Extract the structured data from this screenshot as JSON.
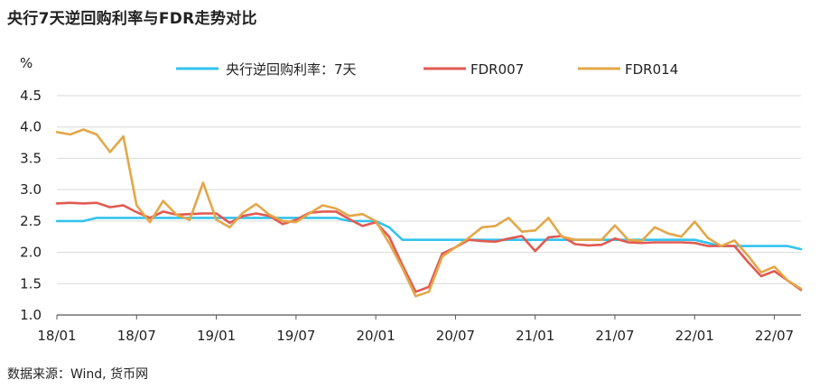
{
  "header": {
    "title": "央行7天逆回购利率与FDR走势对比"
  },
  "footer": {
    "source": "数据来源：Wind, 货币网"
  },
  "chart_data": {
    "type": "line",
    "y_unit": "%",
    "ylim": [
      1.0,
      4.5
    ],
    "y_ticks": [
      "1.0",
      "1.5",
      "2.0",
      "2.5",
      "3.0",
      "3.5",
      "4.0",
      "4.5"
    ],
    "x_range": [
      "2018-01",
      "2022-09"
    ],
    "x_ticks": [
      "18/01",
      "18/07",
      "19/01",
      "19/07",
      "20/01",
      "20/07",
      "21/01",
      "21/07",
      "22/01",
      "22/07"
    ],
    "grid": "horizontal",
    "legend_position": "top",
    "series": [
      {
        "name": "央行逆回购利率：7天",
        "color": "#33c3ee",
        "x": [
          "2018-01",
          "2018-02",
          "2018-03",
          "2018-04",
          "2018-05",
          "2018-06",
          "2018-07",
          "2018-08",
          "2018-09",
          "2018-10",
          "2018-11",
          "2018-12",
          "2019-01",
          "2019-02",
          "2019-03",
          "2019-04",
          "2019-05",
          "2019-06",
          "2019-07",
          "2019-08",
          "2019-09",
          "2019-10",
          "2019-11",
          "2019-12",
          "2020-01",
          "2020-02",
          "2020-03",
          "2020-04",
          "2020-05",
          "2020-06",
          "2020-07",
          "2020-08",
          "2020-09",
          "2020-10",
          "2020-11",
          "2020-12",
          "2021-01",
          "2021-02",
          "2021-03",
          "2021-04",
          "2021-05",
          "2021-06",
          "2021-07",
          "2021-08",
          "2021-09",
          "2021-10",
          "2021-11",
          "2021-12",
          "2022-01",
          "2022-02",
          "2022-03",
          "2022-04",
          "2022-05",
          "2022-06",
          "2022-07",
          "2022-08",
          "2022-09"
        ],
        "values": [
          2.5,
          2.5,
          2.5,
          2.55,
          2.55,
          2.55,
          2.55,
          2.55,
          2.55,
          2.55,
          2.55,
          2.55,
          2.55,
          2.55,
          2.55,
          2.55,
          2.55,
          2.55,
          2.55,
          2.55,
          2.55,
          2.55,
          2.5,
          2.5,
          2.5,
          2.4,
          2.2,
          2.2,
          2.2,
          2.2,
          2.2,
          2.2,
          2.2,
          2.2,
          2.2,
          2.2,
          2.2,
          2.2,
          2.2,
          2.2,
          2.2,
          2.2,
          2.2,
          2.2,
          2.2,
          2.2,
          2.2,
          2.2,
          2.2,
          2.15,
          2.1,
          2.1,
          2.1,
          2.1,
          2.1,
          2.1,
          2.05
        ]
      },
      {
        "name": "FDR007",
        "color": "#e05a52",
        "x": [
          "2018-01",
          "2018-02",
          "2018-03",
          "2018-04",
          "2018-05",
          "2018-06",
          "2018-07",
          "2018-08",
          "2018-09",
          "2018-10",
          "2018-11",
          "2018-12",
          "2019-01",
          "2019-02",
          "2019-03",
          "2019-04",
          "2019-05",
          "2019-06",
          "2019-07",
          "2019-08",
          "2019-09",
          "2019-10",
          "2019-11",
          "2019-12",
          "2020-01",
          "2020-02",
          "2020-03",
          "2020-04",
          "2020-05",
          "2020-06",
          "2020-07",
          "2020-08",
          "2020-09",
          "2020-10",
          "2020-11",
          "2020-12",
          "2021-01",
          "2021-02",
          "2021-03",
          "2021-04",
          "2021-05",
          "2021-06",
          "2021-07",
          "2021-08",
          "2021-09",
          "2021-10",
          "2021-11",
          "2021-12",
          "2022-01",
          "2022-02",
          "2022-03",
          "2022-04",
          "2022-05",
          "2022-06",
          "2022-07",
          "2022-08",
          "2022-09"
        ],
        "values": [
          2.78,
          2.79,
          2.78,
          2.79,
          2.72,
          2.75,
          2.64,
          2.55,
          2.65,
          2.6,
          2.61,
          2.62,
          2.62,
          2.47,
          2.58,
          2.62,
          2.58,
          2.45,
          2.52,
          2.63,
          2.65,
          2.65,
          2.53,
          2.42,
          2.48,
          2.25,
          1.8,
          1.37,
          1.45,
          1.98,
          2.08,
          2.2,
          2.18,
          2.17,
          2.22,
          2.26,
          2.02,
          2.24,
          2.26,
          2.13,
          2.11,
          2.12,
          2.22,
          2.16,
          2.15,
          2.16,
          2.16,
          2.16,
          2.15,
          2.1,
          2.1,
          2.1,
          1.85,
          1.62,
          1.7,
          1.55,
          1.4
        ]
      },
      {
        "name": "FDR014",
        "color": "#e3a748",
        "x": [
          "2018-01",
          "2018-02",
          "2018-03",
          "2018-04",
          "2018-05",
          "2018-06",
          "2018-07",
          "2018-08",
          "2018-09",
          "2018-10",
          "2018-11",
          "2018-12",
          "2019-01",
          "2019-02",
          "2019-03",
          "2019-04",
          "2019-05",
          "2019-06",
          "2019-07",
          "2019-08",
          "2019-09",
          "2019-10",
          "2019-11",
          "2019-12",
          "2020-01",
          "2020-02",
          "2020-03",
          "2020-04",
          "2020-05",
          "2020-06",
          "2020-07",
          "2020-08",
          "2020-09",
          "2020-10",
          "2020-11",
          "2020-12",
          "2021-01",
          "2021-02",
          "2021-03",
          "2021-04",
          "2021-05",
          "2021-06",
          "2021-07",
          "2021-08",
          "2021-09",
          "2021-10",
          "2021-11",
          "2021-12",
          "2022-01",
          "2022-02",
          "2022-03",
          "2022-04",
          "2022-05",
          "2022-06",
          "2022-07",
          "2022-08",
          "2022-09"
        ],
        "values": [
          3.92,
          3.88,
          3.96,
          3.88,
          3.6,
          3.85,
          2.75,
          2.48,
          2.82,
          2.6,
          2.52,
          3.11,
          2.52,
          2.4,
          2.63,
          2.77,
          2.6,
          2.5,
          2.48,
          2.62,
          2.75,
          2.7,
          2.58,
          2.61,
          2.5,
          2.15,
          1.75,
          1.3,
          1.37,
          1.93,
          2.08,
          2.23,
          2.4,
          2.42,
          2.55,
          2.33,
          2.35,
          2.55,
          2.25,
          2.2,
          2.2,
          2.2,
          2.43,
          2.2,
          2.18,
          2.4,
          2.3,
          2.25,
          2.49,
          2.23,
          2.1,
          2.19,
          1.95,
          1.68,
          1.77,
          1.55,
          1.42
        ]
      }
    ]
  }
}
